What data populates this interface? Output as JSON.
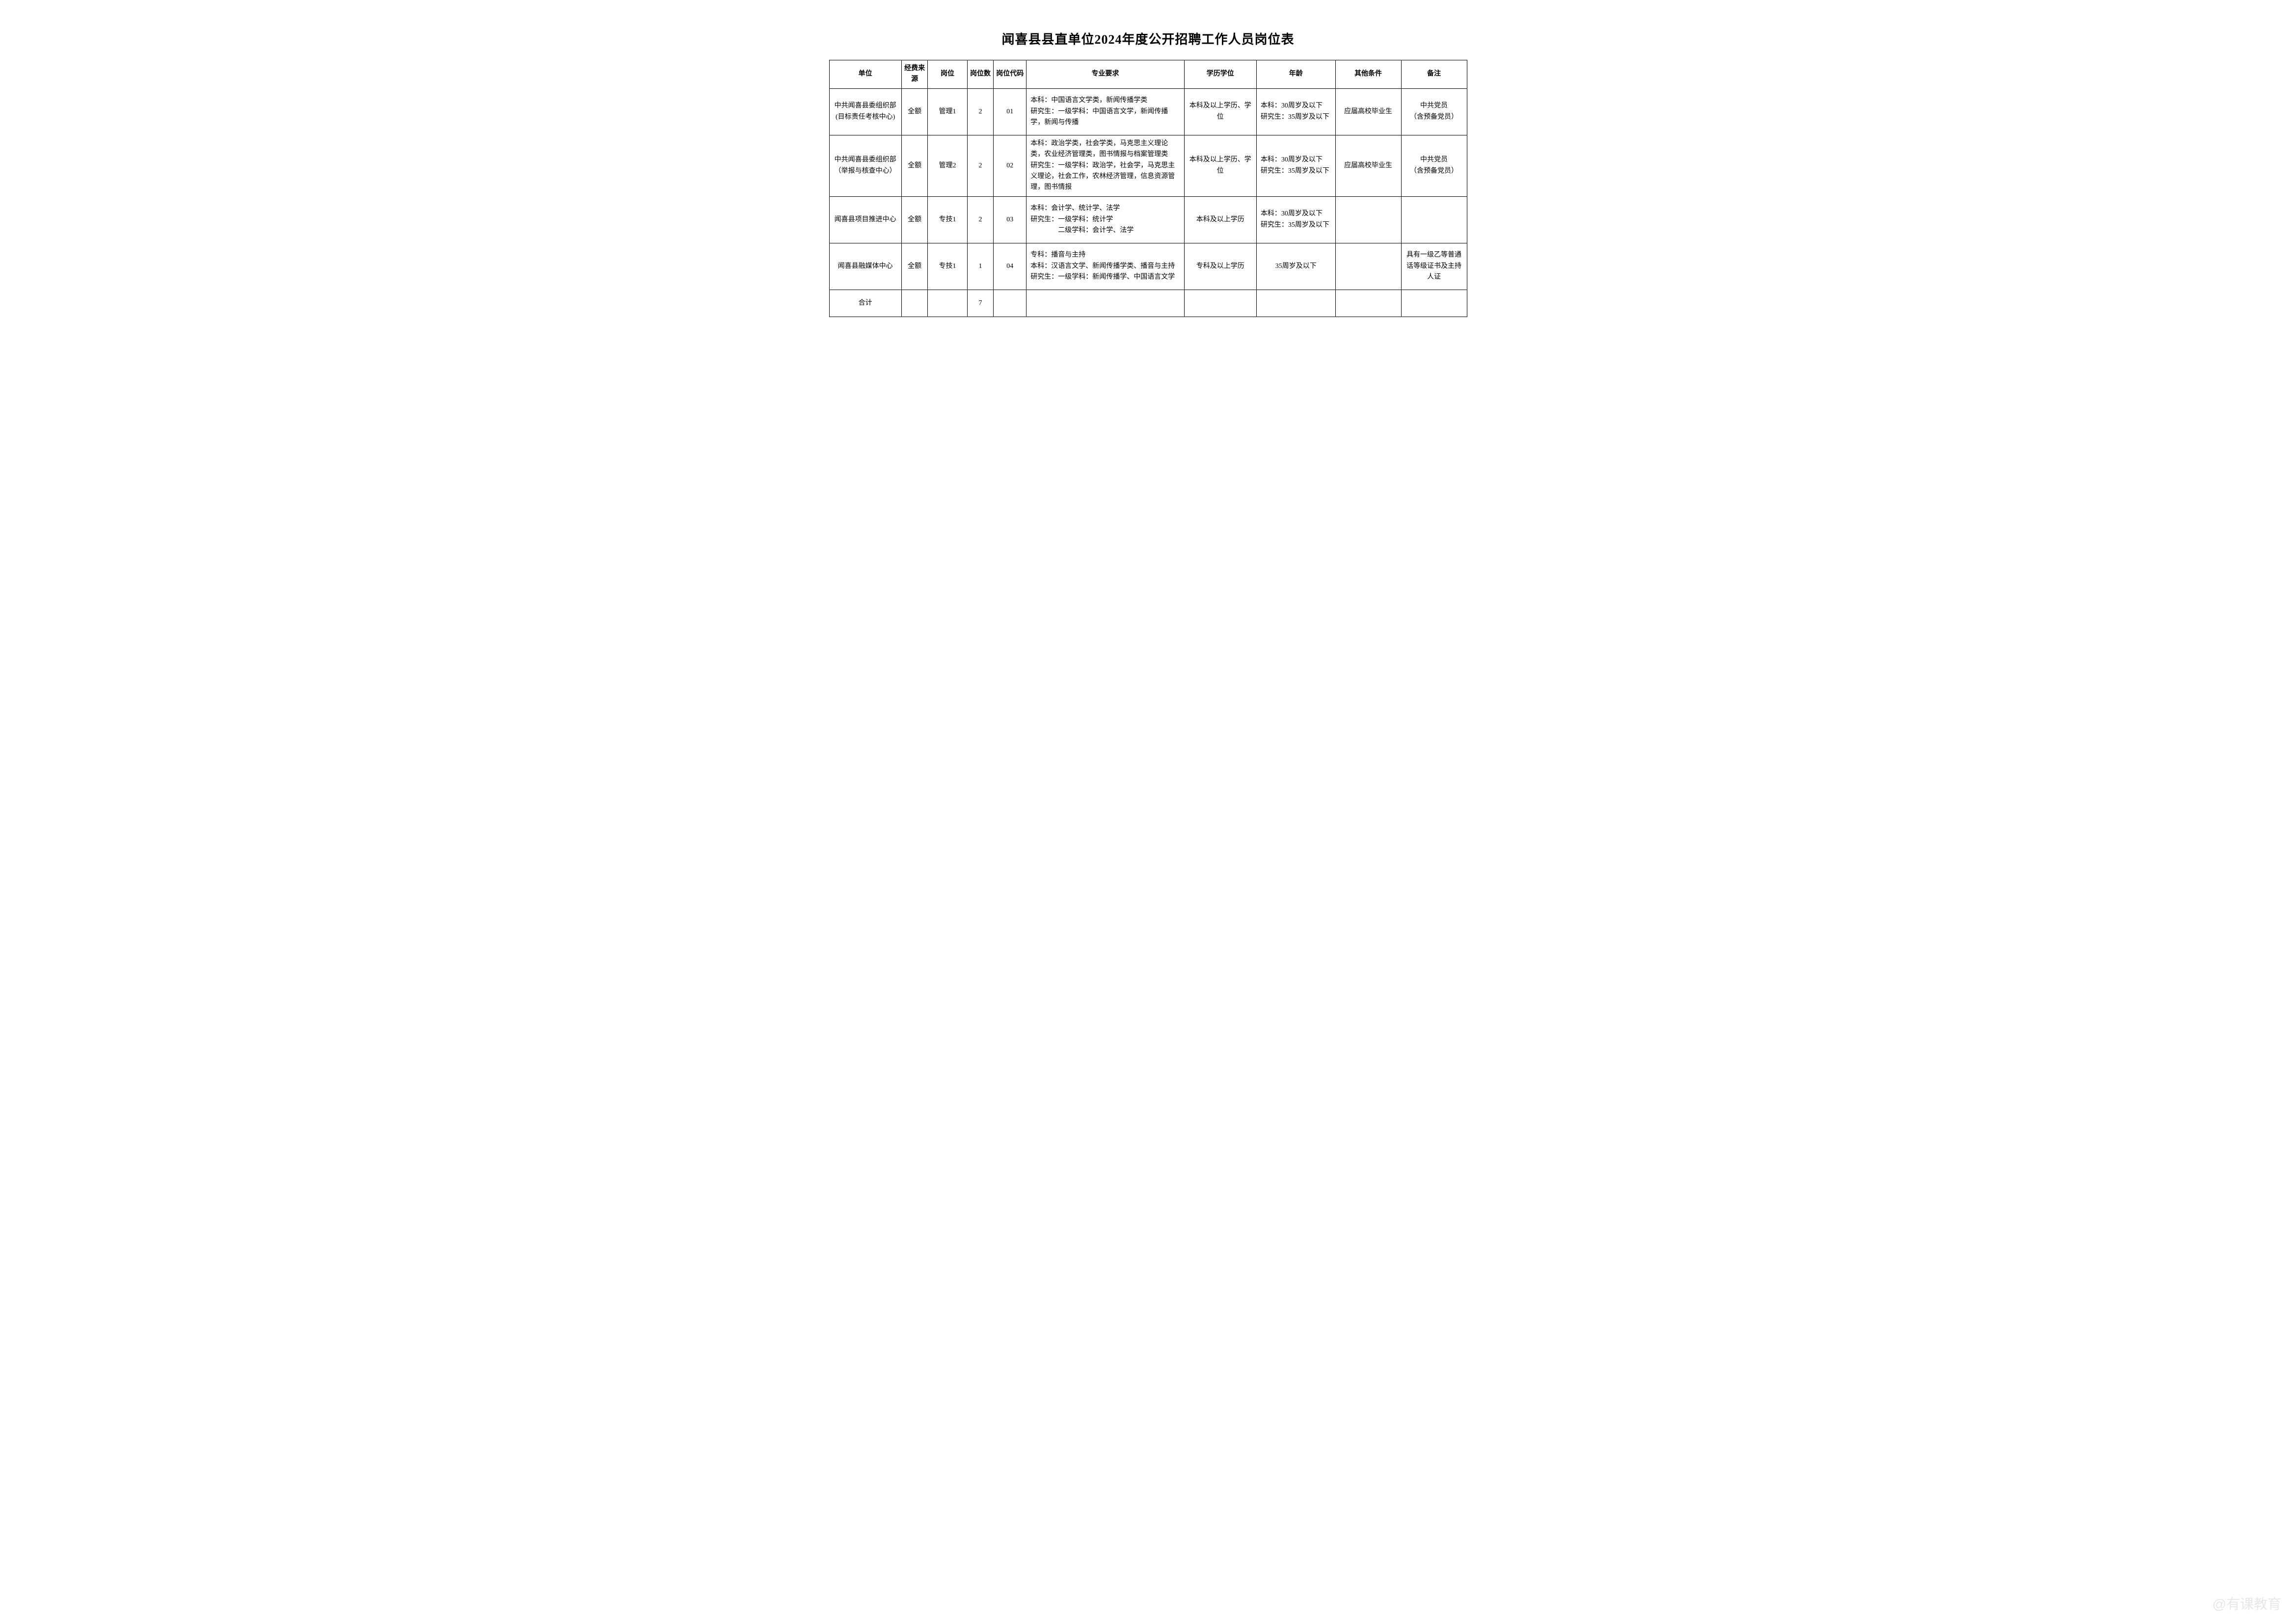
{
  "title": "闻喜县县直单位2024年度公开招聘工作人员岗位表",
  "headers": {
    "unit": "单位",
    "fund": "经费来源",
    "position": "岗位",
    "count": "岗位数",
    "code": "岗位代码",
    "major": "专业要求",
    "edu": "学历学位",
    "age": "年龄",
    "other": "其他条件",
    "remark": "备注"
  },
  "rows": [
    {
      "unit": "中共闻喜县委组织部(目标责任考核中心)",
      "fund": "全额",
      "position": "管理1",
      "count": "2",
      "code": "01",
      "major": "本科：中国语言文学类，新闻传播学类\n研究生：一级学科：中国语言文学，新闻传播学，新闻与传播",
      "edu": "本科及以上学历、学位",
      "age": "本科：30周岁及以下\n研究生：35周岁及以下",
      "other": "应届高校毕业生",
      "remark": "中共党员\n（含预备党员）"
    },
    {
      "unit": "中共闻喜县委组织部（举报与核查中心）",
      "fund": "全额",
      "position": "管理2",
      "count": "2",
      "code": "02",
      "major": "本科：政治学类，社会学类，马克思主义理论类，农业经济管理类，图书情报与档案管理类\n研究生：一级学科：政治学，社会学，马克思主义理论，社会工作，农林经济管理，信息资源管理，图书情报",
      "edu": "本科及以上学历、学位",
      "age": "本科：30周岁及以下\n研究生：35周岁及以下",
      "other": "应届高校毕业生",
      "remark": "中共党员\n（含预备党员）"
    },
    {
      "unit": "闻喜县项目推进中心",
      "fund": "全额",
      "position": "专技1",
      "count": "2",
      "code": "03",
      "major": "本科：会计学、统计学、法学\n研究生：一级学科：统计学\n　　　　二级学科：会计学、法学",
      "edu": "本科及以上学历",
      "age": "本科：30周岁及以下\n研究生：35周岁及以下",
      "other": "",
      "remark": ""
    },
    {
      "unit": "闻喜县融媒体中心",
      "fund": "全额",
      "position": "专技1",
      "count": "1",
      "code": "04",
      "major": "专科：播音与主持\n本科：汉语言文学、新闻传播学类、播音与主持\n研究生：一级学科：新闻传播学、中国语言文学",
      "edu": "专科及以上学历",
      "age": "35周岁及以下",
      "other": "",
      "remark": "具有一级乙等普通话等级证书及主持人证"
    }
  ],
  "total": {
    "label": "合计",
    "count": "7"
  },
  "watermark": "@有课教育",
  "colors": {
    "background": "#ffffff",
    "border": "#000000",
    "text": "#000000",
    "watermark": "#d0d0d0"
  },
  "typography": {
    "title_fontsize": 26,
    "cell_fontsize": 14,
    "font_family": "SimSun"
  }
}
